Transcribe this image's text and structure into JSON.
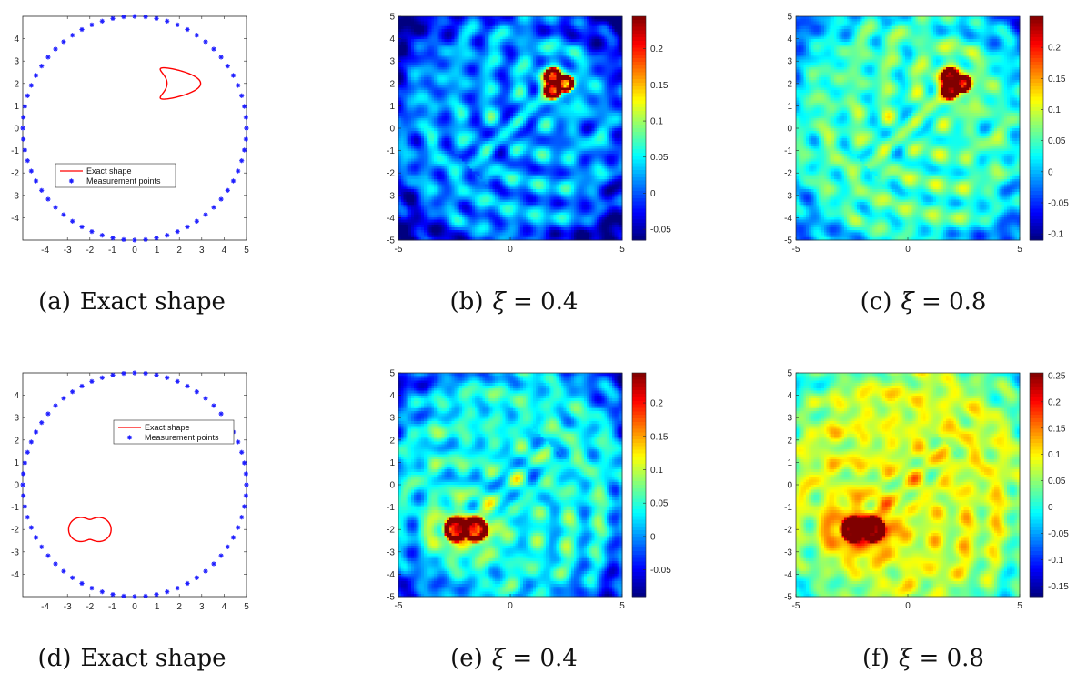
{
  "colors": {
    "boundary": "#ff0000",
    "points": "#1f1fff",
    "axes": "#262626",
    "colormap": [
      "#00007f",
      "#0000ff",
      "#007fff",
      "#00ffff",
      "#7fff7f",
      "#ffff00",
      "#ff7f00",
      "#ff0000",
      "#7f0000"
    ]
  },
  "chart_data": [
    {
      "id": "a",
      "type": "scatter",
      "caption_tag": "(a)",
      "caption_text": "Exact shape",
      "xlim": [
        -5,
        5
      ],
      "ylim": [
        -5,
        5
      ],
      "xticks": [
        -4,
        -3,
        -2,
        -1,
        0,
        1,
        2,
        3,
        4,
        5
      ],
      "yticks": [
        -4,
        -3,
        -2,
        -1,
        0,
        1,
        2,
        3,
        4
      ],
      "legend": {
        "position": "lower-left",
        "entries": [
          "Exact shape",
          "Measurement points"
        ]
      },
      "measurement_points": {
        "count": 64,
        "radius": 5,
        "center": [
          0,
          0
        ]
      },
      "exact_shape": {
        "kind": "kite",
        "center": [
          2,
          2
        ]
      }
    },
    {
      "id": "b",
      "type": "heatmap",
      "caption_tag": "(b)",
      "caption_var": "ξ",
      "caption_rest": " = 0.4",
      "xlim": [
        -5,
        5
      ],
      "ylim": [
        -5,
        5
      ],
      "xticks": [
        -5,
        0,
        5
      ],
      "yticks": [
        -5,
        -4,
        -3,
        -2,
        -1,
        0,
        1,
        2,
        3,
        4,
        5
      ],
      "colorbar": {
        "range": [
          -0.065,
          0.245
        ],
        "ticks": [
          "-0.05",
          "0",
          "0.05",
          "0.1",
          "0.15",
          "0.2"
        ]
      },
      "peak": [
        2,
        2
      ],
      "shape": "kite",
      "background_level": 0.02
    },
    {
      "id": "c",
      "type": "heatmap",
      "caption_tag": "(c)",
      "caption_var": "ξ",
      "caption_rest": " = 0.8",
      "xlim": [
        -5,
        5
      ],
      "ylim": [
        -5,
        5
      ],
      "xticks": [
        -5,
        0,
        5
      ],
      "yticks": [
        -5,
        -4,
        -3,
        -2,
        -1,
        0,
        1,
        2,
        3,
        4,
        5
      ],
      "colorbar": {
        "range": [
          -0.11,
          0.25
        ],
        "ticks": [
          "-0.1",
          "-0.05",
          "0",
          "0.05",
          "0.1",
          "0.15",
          "0.2"
        ]
      },
      "peak": [
        2,
        2
      ],
      "shape": "kite",
      "background_level": 0.05
    },
    {
      "id": "d",
      "type": "scatter",
      "caption_tag": "(d)",
      "caption_text": "Exact shape",
      "xlim": [
        -5,
        5
      ],
      "ylim": [
        -5,
        5
      ],
      "xticks": [
        -4,
        -3,
        -2,
        -1,
        0,
        1,
        2,
        3,
        4,
        5
      ],
      "yticks": [
        -4,
        -3,
        -2,
        -1,
        0,
        1,
        2,
        3,
        4
      ],
      "legend": {
        "position": "upper-right",
        "entries": [
          "Exact shape",
          "Measurement points"
        ]
      },
      "measurement_points": {
        "count": 64,
        "radius": 5,
        "center": [
          0,
          0
        ]
      },
      "exact_shape": {
        "kind": "peanut",
        "center": [
          -2,
          -2
        ]
      }
    },
    {
      "id": "e",
      "type": "heatmap",
      "caption_tag": "(e)",
      "caption_var": "ξ",
      "caption_rest": " = 0.4",
      "xlim": [
        -5,
        5
      ],
      "ylim": [
        -5,
        5
      ],
      "xticks": [
        -5,
        0,
        5
      ],
      "yticks": [
        -5,
        -4,
        -3,
        -2,
        -1,
        0,
        1,
        2,
        3,
        4,
        5
      ],
      "colorbar": {
        "range": [
          -0.09,
          0.245
        ],
        "ticks": [
          "-0.05",
          "0",
          "0.05",
          "0.1",
          "0.15",
          "0.2"
        ]
      },
      "peak": [
        -2,
        -2
      ],
      "shape": "peanut",
      "background_level": 0.04
    },
    {
      "id": "f",
      "type": "heatmap",
      "caption_tag": "(f)",
      "caption_var": "ξ",
      "caption_rest": " = 0.8",
      "xlim": [
        -5,
        5
      ],
      "ylim": [
        -5,
        5
      ],
      "xticks": [
        -5,
        0,
        5
      ],
      "yticks": [
        -5,
        -4,
        -3,
        -2,
        -1,
        0,
        1,
        2,
        3,
        4,
        5
      ],
      "colorbar": {
        "range": [
          -0.17,
          0.255
        ],
        "ticks": [
          "-0.15",
          "-0.1",
          "-0.05",
          "0",
          "0.05",
          "0.1",
          "0.15",
          "0.2",
          "0.25"
        ]
      },
      "peak": [
        -2,
        -2
      ],
      "shape": "peanut",
      "background_level": 0.08
    }
  ]
}
